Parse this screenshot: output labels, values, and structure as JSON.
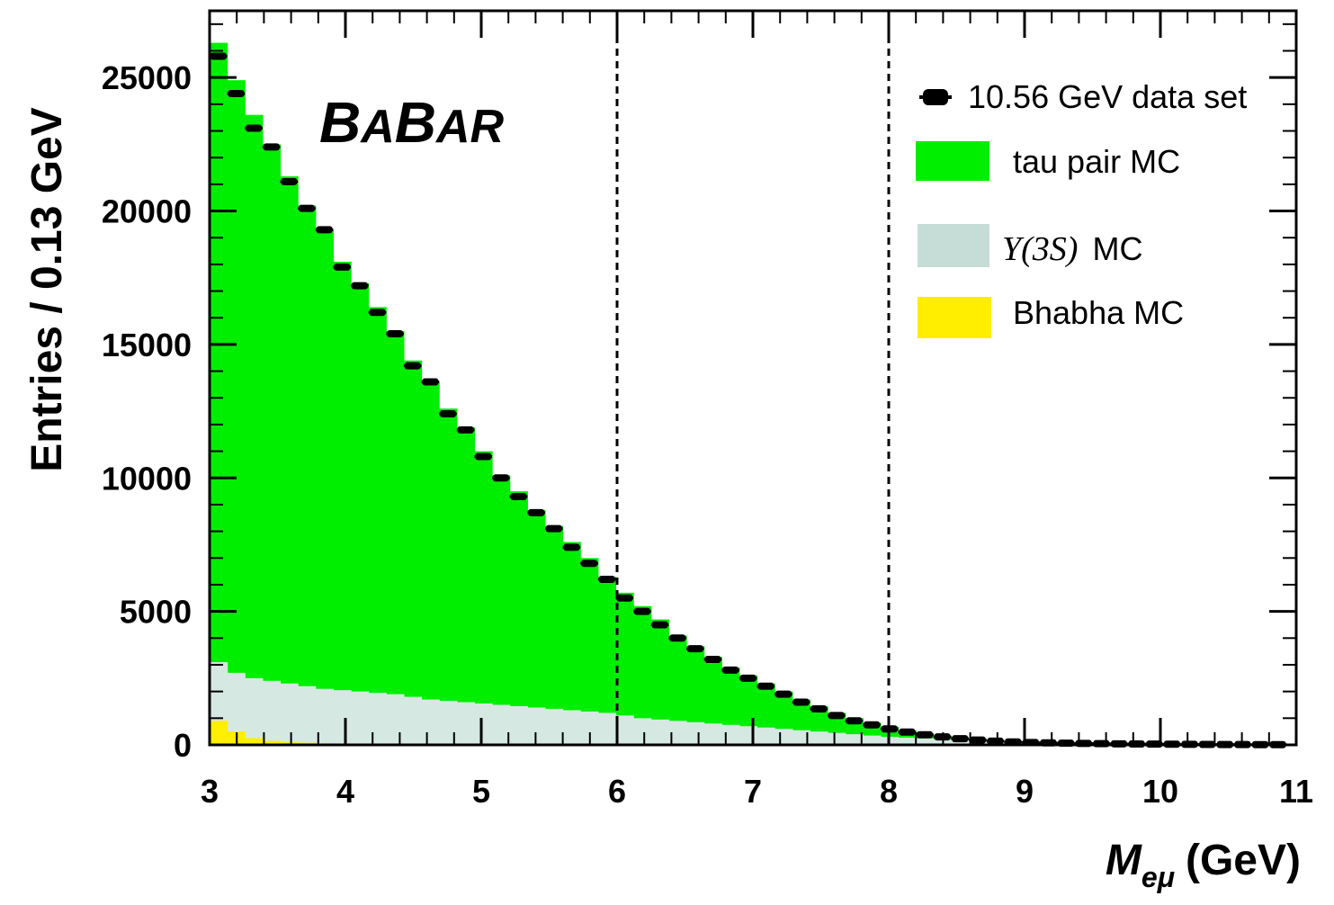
{
  "chart_data": {
    "type": "histogram",
    "xlabel_main": "M",
    "xlabel_sub": "eμ",
    "xlabel_unit": "(GeV)",
    "ylabel": "Entries / 0.13 GeV",
    "xlim": [
      3,
      11
    ],
    "ylim": [
      0,
      27500
    ],
    "x_ticks": [
      "3",
      "4",
      "5",
      "6",
      "7",
      "8",
      "9",
      "10",
      "11"
    ],
    "y_ticks": [
      "0",
      "5000",
      "10000",
      "15000",
      "20000",
      "25000"
    ],
    "experiment_label": {
      "big1": "B",
      "small1": "A",
      "big2": "B",
      "small2": "AR"
    },
    "bin_width": 0.13,
    "bin_edges_start": 3.0,
    "legend": {
      "data": "10.56 GeV data set",
      "tau": "tau pair MC",
      "upsilon_math": "Υ(3S)",
      "upsilon_text": "MC",
      "bhabha": "Bhabha MC"
    },
    "colors": {
      "tau": "#00ee00",
      "upsilon": "#d5e8e2",
      "bhabha": "#ffee00",
      "data": "#000000",
      "cut_lines": "#000000"
    },
    "cut_lines_x": [
      6,
      8
    ],
    "series": [
      {
        "name": "tau pair MC",
        "values": [
          26300,
          24900,
          23600,
          22500,
          21300,
          20200,
          19300,
          18100,
          17300,
          16400,
          15500,
          14400,
          13600,
          12600,
          11900,
          11000,
          10100,
          9500,
          8800,
          8200,
          7600,
          7000,
          6300,
          5700,
          5200,
          4700,
          4100,
          3700,
          3300,
          2900,
          2600,
          2300,
          2000,
          1700,
          1450,
          1200,
          1000,
          830,
          680,
          540,
          420,
          330,
          250,
          190,
          150,
          120,
          100,
          80,
          70,
          60,
          50,
          40,
          35,
          30,
          25,
          20,
          18,
          15,
          12,
          10,
          8
        ]
      },
      {
        "name": "Υ(3S) MC",
        "values": [
          3100,
          2700,
          2500,
          2400,
          2300,
          2200,
          2100,
          2050,
          2000,
          1950,
          1900,
          1800,
          1700,
          1650,
          1600,
          1550,
          1500,
          1450,
          1400,
          1350,
          1300,
          1250,
          1200,
          1100,
          1000,
          950,
          900,
          850,
          800,
          750,
          700,
          650,
          600,
          550,
          500,
          450,
          400,
          350,
          300,
          270,
          240,
          210,
          180,
          150,
          120,
          100,
          80,
          70,
          60,
          50,
          40,
          35,
          30,
          25,
          20,
          18,
          15,
          12,
          10,
          8,
          6
        ]
      },
      {
        "name": "Bhabha MC",
        "values": [
          900,
          500,
          250,
          150,
          100,
          80,
          60,
          50,
          40,
          30,
          25,
          20,
          18,
          15,
          12,
          10,
          8,
          6,
          5,
          4,
          3,
          3,
          2,
          2,
          2,
          1,
          1,
          1,
          1,
          1,
          0,
          0,
          0,
          0,
          0,
          0,
          0,
          0,
          0,
          0,
          0,
          0,
          0,
          0,
          0,
          0,
          0,
          0,
          0,
          0,
          0,
          0,
          0,
          0,
          0,
          0,
          0,
          0,
          0,
          0,
          0
        ]
      },
      {
        "name": "10.56 GeV data set",
        "values": [
          25800,
          24400,
          23100,
          22400,
          21100,
          20100,
          19300,
          17900,
          17200,
          16200,
          15400,
          14200,
          13600,
          12400,
          11800,
          10800,
          10000,
          9300,
          8700,
          8100,
          7400,
          6800,
          6200,
          5500,
          5000,
          4500,
          4000,
          3600,
          3200,
          2800,
          2500,
          2200,
          1900,
          1600,
          1350,
          1100,
          900,
          750,
          600,
          480,
          380,
          300,
          230,
          180,
          140,
          110,
          90,
          75,
          65,
          55,
          45,
          40,
          33,
          28,
          24,
          20,
          17,
          14,
          11,
          9,
          7
        ]
      }
    ]
  }
}
